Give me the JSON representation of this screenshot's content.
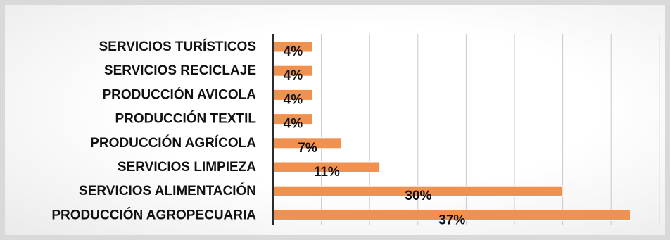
{
  "chart_data": {
    "type": "bar",
    "orientation": "horizontal",
    "categories": [
      "SERVICIOS TURÍSTICOS",
      "SERVICIOS RECICLAJE",
      "PRODUCCIÓN AVICOLA",
      "PRODUCCIÓN TEXTIL",
      "PRODUCCIÓN AGRÍCOLA",
      "SERVICIOS LIMPIEZA",
      "SERVICIOS ALIMENTACIÓN",
      "PRODUCCIÓN AGROPECUARIA"
    ],
    "values": [
      4,
      4,
      4,
      4,
      7,
      11,
      30,
      37
    ],
    "data_labels": [
      "4%",
      "4%",
      "4%",
      "4%",
      "7%",
      "11%",
      "30%",
      "37%"
    ],
    "unit": "%",
    "xlim": [
      0,
      40
    ],
    "grid": "vertical",
    "legend": "none",
    "title": "",
    "xlabel": "",
    "ylabel": "",
    "colors": {
      "bar": "#f0914f",
      "bar_edge": "#ffffff",
      "grid": "#c9c9c9",
      "axis": "#2b2b2b",
      "text": "#111111"
    }
  }
}
